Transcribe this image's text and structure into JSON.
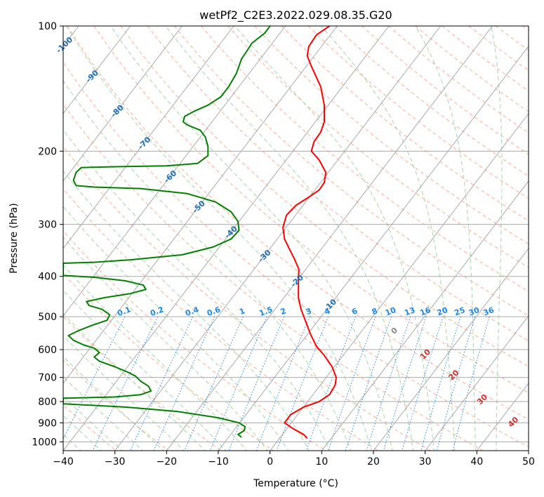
{
  "chart_data": {
    "type": "line",
    "title": "wetPf2_C2E3.2022.029.08.35.G20",
    "xlabel": "Temperature (°C)",
    "ylabel": "Pressure (hPa)",
    "xlim": [
      -40,
      50
    ],
    "ylim": [
      1050,
      100
    ],
    "y_scale": "log",
    "x_ticks": [
      -40,
      -30,
      -20,
      -10,
      0,
      10,
      20,
      30,
      40,
      50
    ],
    "y_ticks": [
      100,
      200,
      300,
      400,
      500,
      600,
      700,
      800,
      900,
      1000
    ],
    "grid": true,
    "colors": {
      "temperature": "#ff0000",
      "dewpoint": "#008000",
      "isotherm_grid": "#aaaaaa",
      "dry_adiabat": "#ffab91",
      "moist_adiabat": "#a5d6a7",
      "mixing_ratio": "#1e88e5",
      "isotherm_label": "#1f6fb5",
      "moist_label": "#d32f2f"
    },
    "series": [
      {
        "key": "temperature",
        "points": [
          [
            7.2,
            980
          ],
          [
            6.5,
            960
          ],
          [
            4.5,
            930
          ],
          [
            2.8,
            900
          ],
          [
            4.0,
            860
          ],
          [
            6.5,
            825
          ],
          [
            9.5,
            800
          ],
          [
            11.5,
            770
          ],
          [
            12.6,
            730
          ],
          [
            12.8,
            700
          ],
          [
            12.0,
            660
          ],
          [
            10.5,
            620
          ],
          [
            9.0,
            590
          ],
          [
            7.8,
            550
          ],
          [
            6.8,
            510
          ],
          [
            6.0,
            480
          ],
          [
            5.5,
            450
          ],
          [
            5.5,
            420
          ],
          [
            5.5,
            400
          ],
          [
            5.6,
            385
          ],
          [
            4.8,
            365
          ],
          [
            3.8,
            345
          ],
          [
            2.8,
            325
          ],
          [
            2.5,
            305
          ],
          [
            3.2,
            285
          ],
          [
            5.0,
            270
          ],
          [
            7.5,
            258
          ],
          [
            9.5,
            248
          ],
          [
            10.5,
            238
          ],
          [
            10.8,
            225
          ],
          [
            9.5,
            210
          ],
          [
            8.0,
            200
          ],
          [
            8.5,
            190
          ],
          [
            9.8,
            180
          ],
          [
            10.5,
            170
          ],
          [
            10.5,
            155
          ],
          [
            9.8,
            140
          ],
          [
            8.0,
            125
          ],
          [
            7.2,
            118
          ],
          [
            7.5,
            112
          ],
          [
            9.0,
            105
          ],
          [
            11.5,
            100
          ]
        ]
      },
      {
        "key": "dewpoint",
        "points": [
          [
            -5.5,
            975
          ],
          [
            -6.2,
            960
          ],
          [
            -5.0,
            940
          ],
          [
            -4.8,
            920
          ],
          [
            -6.0,
            900
          ],
          [
            -10.0,
            875
          ],
          [
            -18.0,
            845
          ],
          [
            -28.0,
            825
          ],
          [
            -40.0,
            810
          ],
          [
            -40.0,
            785
          ],
          [
            -30.0,
            780
          ],
          [
            -25.0,
            770
          ],
          [
            -23.0,
            755
          ],
          [
            -23.5,
            735
          ],
          [
            -25.0,
            715
          ],
          [
            -26.0,
            695
          ],
          [
            -27.5,
            680
          ],
          [
            -30.0,
            660
          ],
          [
            -33.0,
            640
          ],
          [
            -34.0,
            625
          ],
          [
            -33.0,
            610
          ],
          [
            -34.0,
            595
          ],
          [
            -36.0,
            585
          ],
          [
            -38.0,
            570
          ],
          [
            -39.0,
            555
          ],
          [
            -37.0,
            540
          ],
          [
            -34.5,
            525
          ],
          [
            -31.5,
            510
          ],
          [
            -31.0,
            495
          ],
          [
            -32.5,
            480
          ],
          [
            -35.0,
            470
          ],
          [
            -35.5,
            460
          ],
          [
            -32.0,
            450
          ],
          [
            -27.0,
            440
          ],
          [
            -24.0,
            430
          ],
          [
            -24.5,
            420
          ],
          [
            -28.0,
            410
          ],
          [
            -34.0,
            402
          ],
          [
            -40.0,
            398
          ],
          [
            -40.0,
            372
          ],
          [
            -34.0,
            370
          ],
          [
            -27.0,
            365
          ],
          [
            -17.0,
            355
          ],
          [
            -11.0,
            340
          ],
          [
            -7.5,
            325
          ],
          [
            -6.0,
            310
          ],
          [
            -6.2,
            295
          ],
          [
            -7.5,
            280
          ],
          [
            -10.5,
            265
          ],
          [
            -16.0,
            253
          ],
          [
            -25.0,
            246
          ],
          [
            -34.0,
            244
          ],
          [
            -37.5,
            242
          ],
          [
            -38.0,
            235
          ],
          [
            -37.5,
            225
          ],
          [
            -36.5,
            219
          ],
          [
            -30.0,
            218
          ],
          [
            -20.0,
            217
          ],
          [
            -14.0,
            214
          ],
          [
            -12.0,
            205
          ],
          [
            -12.0,
            195
          ],
          [
            -12.5,
            185
          ],
          [
            -13.5,
            178
          ],
          [
            -16.0,
            173
          ],
          [
            -16.8,
            170
          ],
          [
            -16.5,
            165
          ],
          [
            -14.5,
            160
          ],
          [
            -12.0,
            155
          ],
          [
            -9.5,
            148
          ],
          [
            -8.0,
            140
          ],
          [
            -6.5,
            130
          ],
          [
            -5.5,
            120
          ],
          [
            -4.5,
            115
          ],
          [
            -3.5,
            110
          ],
          [
            -1.0,
            104
          ],
          [
            0.0,
            100
          ]
        ]
      }
    ],
    "mixing_ratio_labels": [
      "0.1",
      "0.2",
      "0.4",
      "0.6",
      "1",
      "1.5",
      "2",
      "3",
      "4",
      "6",
      "8",
      "10",
      "13",
      "16",
      "20",
      "25",
      "30",
      "36"
    ],
    "mixing_ratio_values": [
      0.1,
      0.2,
      0.4,
      0.6,
      1,
      1.5,
      2,
      3,
      4,
      6,
      8,
      10,
      13,
      16,
      20,
      25,
      30,
      36
    ],
    "isotherm_labels": [
      {
        "text": "-100",
        "T": -100,
        "p": 111
      },
      {
        "text": "-90",
        "T": -90,
        "p": 132
      },
      {
        "text": "-80",
        "T": -80,
        "p": 160
      },
      {
        "text": "-70",
        "T": -70,
        "p": 191
      },
      {
        "text": "-60",
        "T": -60,
        "p": 230
      },
      {
        "text": "-50",
        "T": -50,
        "p": 272
      },
      {
        "text": "-40",
        "T": -40,
        "p": 313
      },
      {
        "text": "-30",
        "T": -30,
        "p": 357
      },
      {
        "text": "-20",
        "T": -20,
        "p": 410
      },
      {
        "text": "-10",
        "T": -10,
        "p": 469
      }
    ],
    "moist_labels": [
      {
        "text": "0",
        "T": 24,
        "p": 540,
        "color": "#888888"
      },
      {
        "text": "10",
        "T": 30,
        "p": 615
      },
      {
        "text": "20",
        "T": 35.5,
        "p": 690
      },
      {
        "text": "30",
        "T": 41,
        "p": 790
      },
      {
        "text": "40",
        "T": 47,
        "p": 895
      }
    ]
  }
}
